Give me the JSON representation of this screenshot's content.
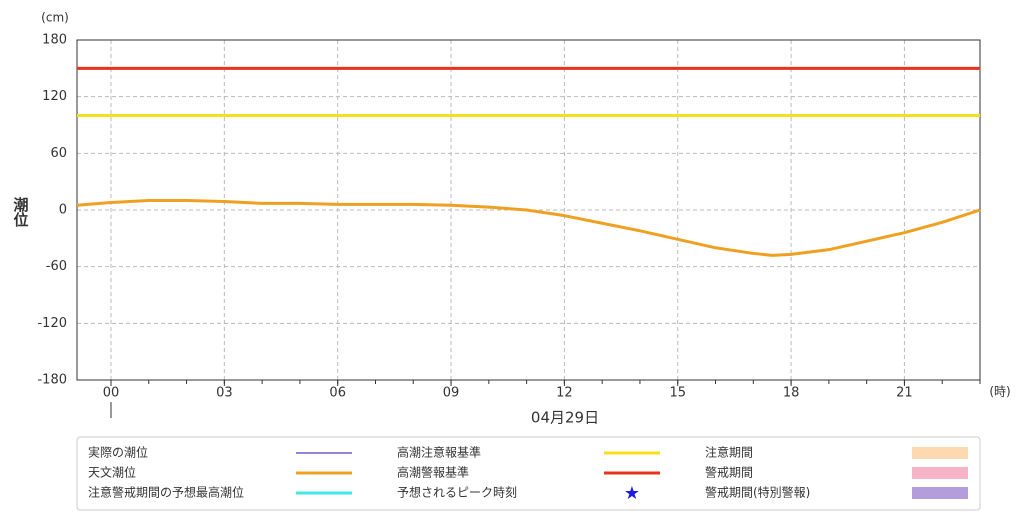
{
  "chart_data": {
    "type": "line",
    "y_unit": "(cm)",
    "y_label": "潮位",
    "x_unit": "(時)",
    "date_label": "04月29日",
    "x": [
      -0.9,
      0,
      1,
      1.5,
      2,
      3,
      4,
      5,
      6,
      7,
      8,
      9,
      10,
      11,
      12,
      13,
      14,
      15,
      16,
      17,
      17.5,
      18,
      19,
      20,
      21,
      22,
      23
    ],
    "series": [
      {
        "name": "天文潮位",
        "color": "#f0a020",
        "values": [
          5,
          8,
          10,
          10,
          10,
          9,
          7,
          7,
          6,
          6,
          6,
          5,
          3,
          0,
          -6,
          -14,
          -22,
          -31,
          -40,
          -46,
          -48,
          -47,
          -42,
          -33,
          -24,
          -13,
          0
        ]
      }
    ],
    "reference_lines": [
      {
        "name": "高潮注意報基準",
        "value": 100,
        "color": "#f5e01e"
      },
      {
        "name": "高潮警報基準",
        "value": 150,
        "color": "#e8321e"
      }
    ],
    "legend_extra": [
      {
        "name": "実際の潮位",
        "color": "#6a5acd",
        "symbol": "line"
      },
      {
        "name": "注意警戒期間の予想最高潮位",
        "color": "#40e8e8",
        "symbol": "line"
      },
      {
        "name": "予想されるピーク時刻",
        "color": "#1a1ae0",
        "symbol": "star"
      },
      {
        "name": "注意期間",
        "color": "#fcd9b0",
        "symbol": "box"
      },
      {
        "name": "警戒期間",
        "color": "#f7b4c8",
        "symbol": "box"
      },
      {
        "name": "警戒期間(特別警報)",
        "color": "#b39ddb",
        "symbol": "box"
      }
    ],
    "xlim": [
      -0.9,
      23
    ],
    "ylim": [
      -180,
      180
    ],
    "xticks": [
      {
        "value": 0,
        "label": "00"
      },
      {
        "value": 3,
        "label": "03"
      },
      {
        "value": 6,
        "label": "06"
      },
      {
        "value": 9,
        "label": "09"
      },
      12,
      15,
      18,
      21
    ],
    "yticks": [
      -180,
      -120,
      -60,
      0,
      60,
      120,
      180
    ],
    "grid": true
  }
}
